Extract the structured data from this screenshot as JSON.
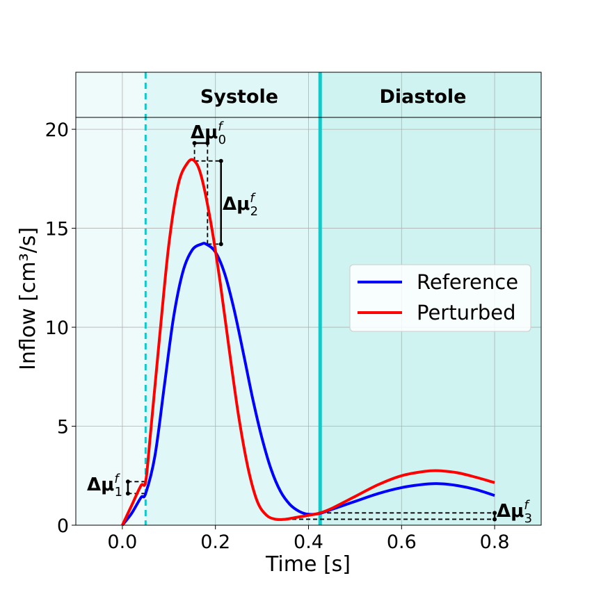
{
  "chart_data": {
    "type": "line",
    "xlabel": "Time [s]",
    "ylabel": "Inflow [cm³/s]",
    "xlim": [
      -0.1,
      0.9
    ],
    "ylim": [
      0,
      20.6
    ],
    "x_ticks": [
      "0.0",
      "0.2",
      "0.4",
      "0.6",
      "0.8"
    ],
    "y_ticks": [
      "0",
      "5",
      "10",
      "15",
      "20"
    ],
    "grid": true,
    "legend_placement": "center-right",
    "phases": [
      {
        "label": "Systole",
        "start": -0.1,
        "end": 0.425,
        "color": "#dff7f6"
      },
      {
        "label": "Diastole",
        "start": 0.425,
        "end": 0.9,
        "color": "#cff3f1"
      }
    ],
    "pre_phase_color": "#effafa",
    "markers": [
      {
        "x": 0.05,
        "style": "dashed",
        "color": "#13c8c8"
      },
      {
        "x": 0.425,
        "style": "solid",
        "color": "#13c8c8"
      }
    ],
    "series": [
      {
        "name": "Reference",
        "color": "#0000ff",
        "x": [
          0.0,
          0.02,
          0.04,
          0.05,
          0.07,
          0.09,
          0.11,
          0.13,
          0.15,
          0.17,
          0.18,
          0.2,
          0.22,
          0.24,
          0.26,
          0.28,
          0.3,
          0.32,
          0.34,
          0.36,
          0.38,
          0.4,
          0.425,
          0.45,
          0.5,
          0.55,
          0.6,
          0.65,
          0.68,
          0.72,
          0.76,
          0.8
        ],
        "y": [
          0.0,
          0.6,
          1.4,
          1.6,
          3.5,
          7.0,
          10.5,
          12.8,
          13.9,
          14.2,
          14.2,
          13.8,
          12.7,
          10.9,
          8.7,
          6.4,
          4.4,
          2.8,
          1.7,
          1.05,
          0.7,
          0.55,
          0.6,
          0.8,
          1.2,
          1.6,
          1.9,
          2.07,
          2.1,
          2.0,
          1.8,
          1.5
        ]
      },
      {
        "name": "Perturbed",
        "color": "#ff0000",
        "x": [
          0.0,
          0.02,
          0.04,
          0.05,
          0.06,
          0.08,
          0.1,
          0.12,
          0.14,
          0.155,
          0.17,
          0.19,
          0.21,
          0.23,
          0.25,
          0.27,
          0.29,
          0.31,
          0.33,
          0.35,
          0.37,
          0.4,
          0.425,
          0.45,
          0.5,
          0.55,
          0.6,
          0.65,
          0.68,
          0.72,
          0.76,
          0.8
        ],
        "y": [
          0.0,
          1.0,
          2.0,
          2.2,
          4.5,
          9.5,
          14.2,
          17.2,
          18.3,
          18.4,
          17.6,
          15.3,
          12.3,
          8.8,
          5.5,
          2.9,
          1.2,
          0.5,
          0.3,
          0.3,
          0.38,
          0.5,
          0.62,
          0.85,
          1.45,
          2.05,
          2.5,
          2.72,
          2.75,
          2.65,
          2.42,
          2.15
        ]
      }
    ],
    "annotations": [
      {
        "label": "Δμ",
        "sup": "f",
        "sub": "0"
      },
      {
        "label": "Δμ",
        "sup": "f",
        "sub": "1"
      },
      {
        "label": "Δμ",
        "sup": "f",
        "sub": "2"
      },
      {
        "label": "Δμ",
        "sup": "f",
        "sub": "3"
      }
    ]
  }
}
